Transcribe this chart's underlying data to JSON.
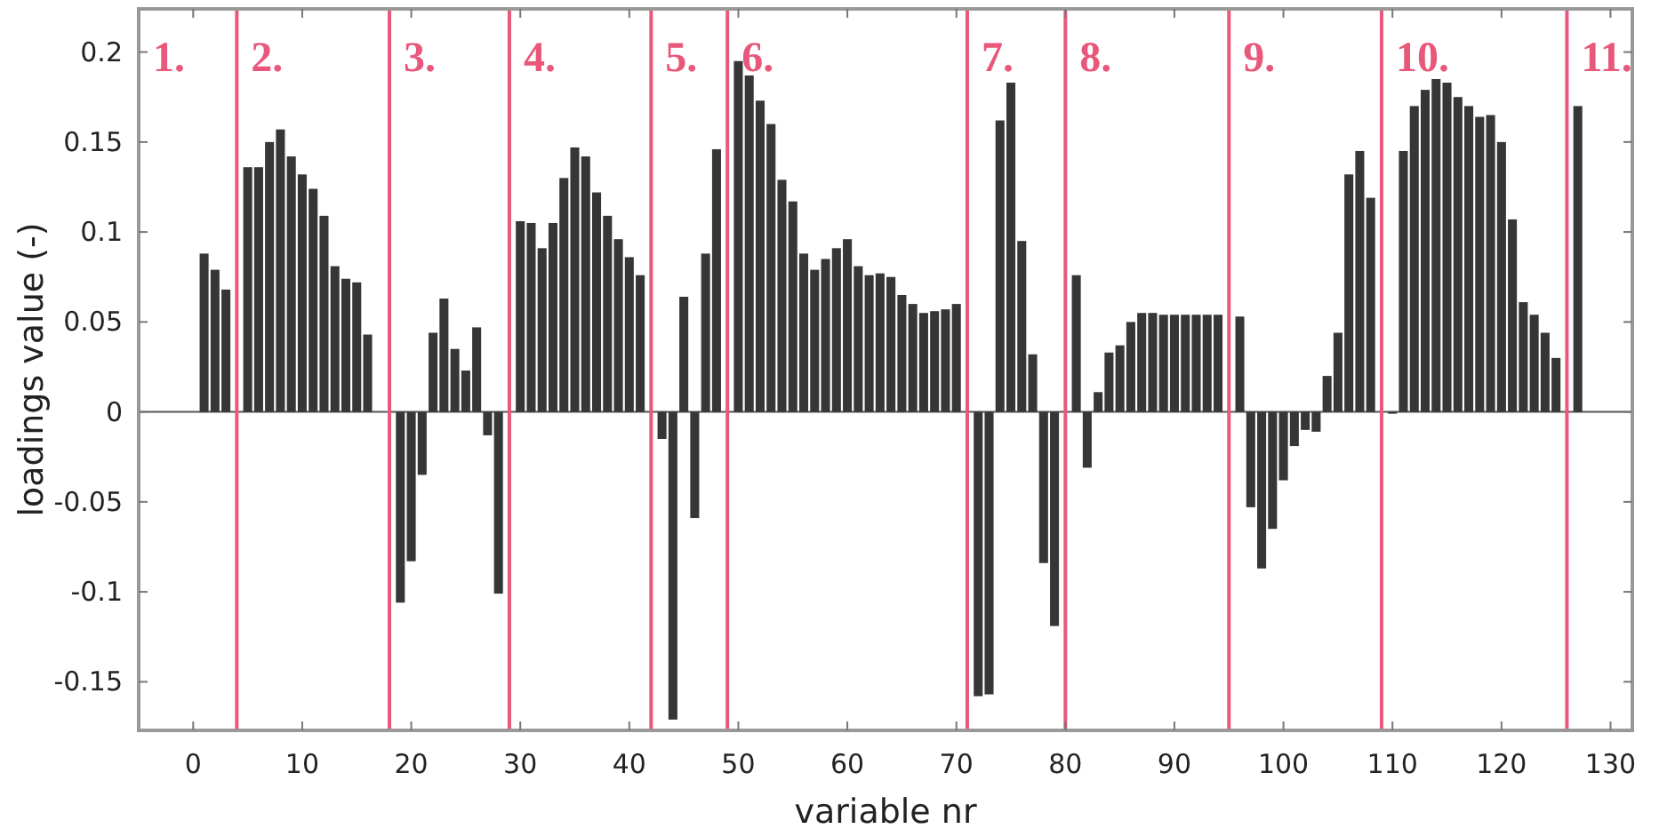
{
  "chart_data": {
    "type": "bar",
    "xlabel": "variable nr",
    "ylabel": "loadings value (-)",
    "x": [
      1,
      2,
      3,
      5,
      6,
      7,
      8,
      9,
      10,
      11,
      12,
      13,
      14,
      15,
      16,
      19,
      20,
      21,
      22,
      23,
      24,
      25,
      26,
      27,
      28,
      30,
      31,
      32,
      33,
      34,
      35,
      36,
      37,
      38,
      39,
      40,
      41,
      43,
      44,
      45,
      46,
      47,
      48,
      50,
      51,
      52,
      53,
      54,
      55,
      56,
      57,
      58,
      59,
      60,
      61,
      62,
      63,
      64,
      65,
      66,
      67,
      68,
      69,
      70,
      72,
      73,
      74,
      75,
      76,
      77,
      78,
      79,
      81,
      82,
      83,
      84,
      85,
      86,
      87,
      88,
      89,
      90,
      91,
      92,
      93,
      94,
      96,
      97,
      98,
      99,
      100,
      101,
      102,
      103,
      104,
      105,
      106,
      107,
      108,
      110,
      111,
      112,
      113,
      114,
      115,
      116,
      117,
      118,
      119,
      120,
      121,
      122,
      123,
      124,
      125,
      127
    ],
    "series": [
      {
        "color": "#363636",
        "values": [
          0.088,
          0.079,
          0.068,
          0.136,
          0.136,
          0.15,
          0.157,
          0.142,
          0.132,
          0.124,
          0.109,
          0.081,
          0.074,
          0.072,
          0.043,
          -0.106,
          -0.083,
          -0.035,
          0.044,
          0.063,
          0.035,
          0.023,
          0.047,
          -0.013,
          -0.101,
          0.106,
          0.105,
          0.091,
          0.105,
          0.13,
          0.147,
          0.142,
          0.122,
          0.109,
          0.096,
          0.086,
          0.076,
          -0.015,
          -0.171,
          0.064,
          -0.059,
          0.088,
          0.146,
          0.195,
          0.187,
          0.173,
          0.16,
          0.129,
          0.117,
          0.088,
          0.079,
          0.085,
          0.091,
          0.096,
          0.081,
          0.076,
          0.077,
          0.075,
          0.065,
          0.06,
          0.055,
          0.056,
          0.057,
          0.06,
          -0.158,
          -0.157,
          0.162,
          0.183,
          0.095,
          0.032,
          -0.084,
          -0.119,
          0.076,
          -0.031,
          0.011,
          0.033,
          0.037,
          0.05,
          0.055,
          0.055,
          0.054,
          0.054,
          0.054,
          0.054,
          0.054,
          0.054,
          0.053,
          -0.053,
          -0.087,
          -0.065,
          -0.038,
          -0.019,
          -0.01,
          -0.011,
          0.02,
          0.044,
          0.132,
          0.145,
          0.119,
          -0.001,
          0.145,
          0.17,
          0.179,
          0.185,
          0.183,
          0.175,
          0.17,
          0.164,
          0.165,
          0.15,
          0.107,
          0.061,
          0.054,
          0.044,
          0.03,
          0.17
        ]
      }
    ],
    "xlim": [
      -5,
      132
    ],
    "ylim": [
      -0.177,
      0.224
    ],
    "xticks": [
      0,
      10,
      20,
      30,
      40,
      50,
      60,
      70,
      80,
      90,
      100,
      110,
      120,
      130
    ],
    "yticks": [
      -0.15,
      -0.1,
      -0.05,
      0,
      0.05,
      0.1,
      0.15,
      0.2
    ],
    "grid": false,
    "ref_lines": [
      {
        "axis": "x",
        "value": 4,
        "color": "#e8587a"
      },
      {
        "axis": "x",
        "value": 18,
        "color": "#e8587a"
      },
      {
        "axis": "x",
        "value": 29,
        "color": "#e8587a"
      },
      {
        "axis": "x",
        "value": 42,
        "color": "#e8587a"
      },
      {
        "axis": "x",
        "value": 49,
        "color": "#e8587a"
      },
      {
        "axis": "x",
        "value": 71,
        "color": "#e8587a"
      },
      {
        "axis": "x",
        "value": 80,
        "color": "#e8587a"
      },
      {
        "axis": "x",
        "value": 95,
        "color": "#e8587a"
      },
      {
        "axis": "x",
        "value": 109,
        "color": "#e8587a"
      },
      {
        "axis": "x",
        "value": 126,
        "color": "#e8587a"
      }
    ],
    "annotations": [
      "1.",
      "2.",
      "3.",
      "4.",
      "5.",
      "6.",
      "7.",
      "8.",
      "9.",
      "10.",
      "11."
    ]
  }
}
